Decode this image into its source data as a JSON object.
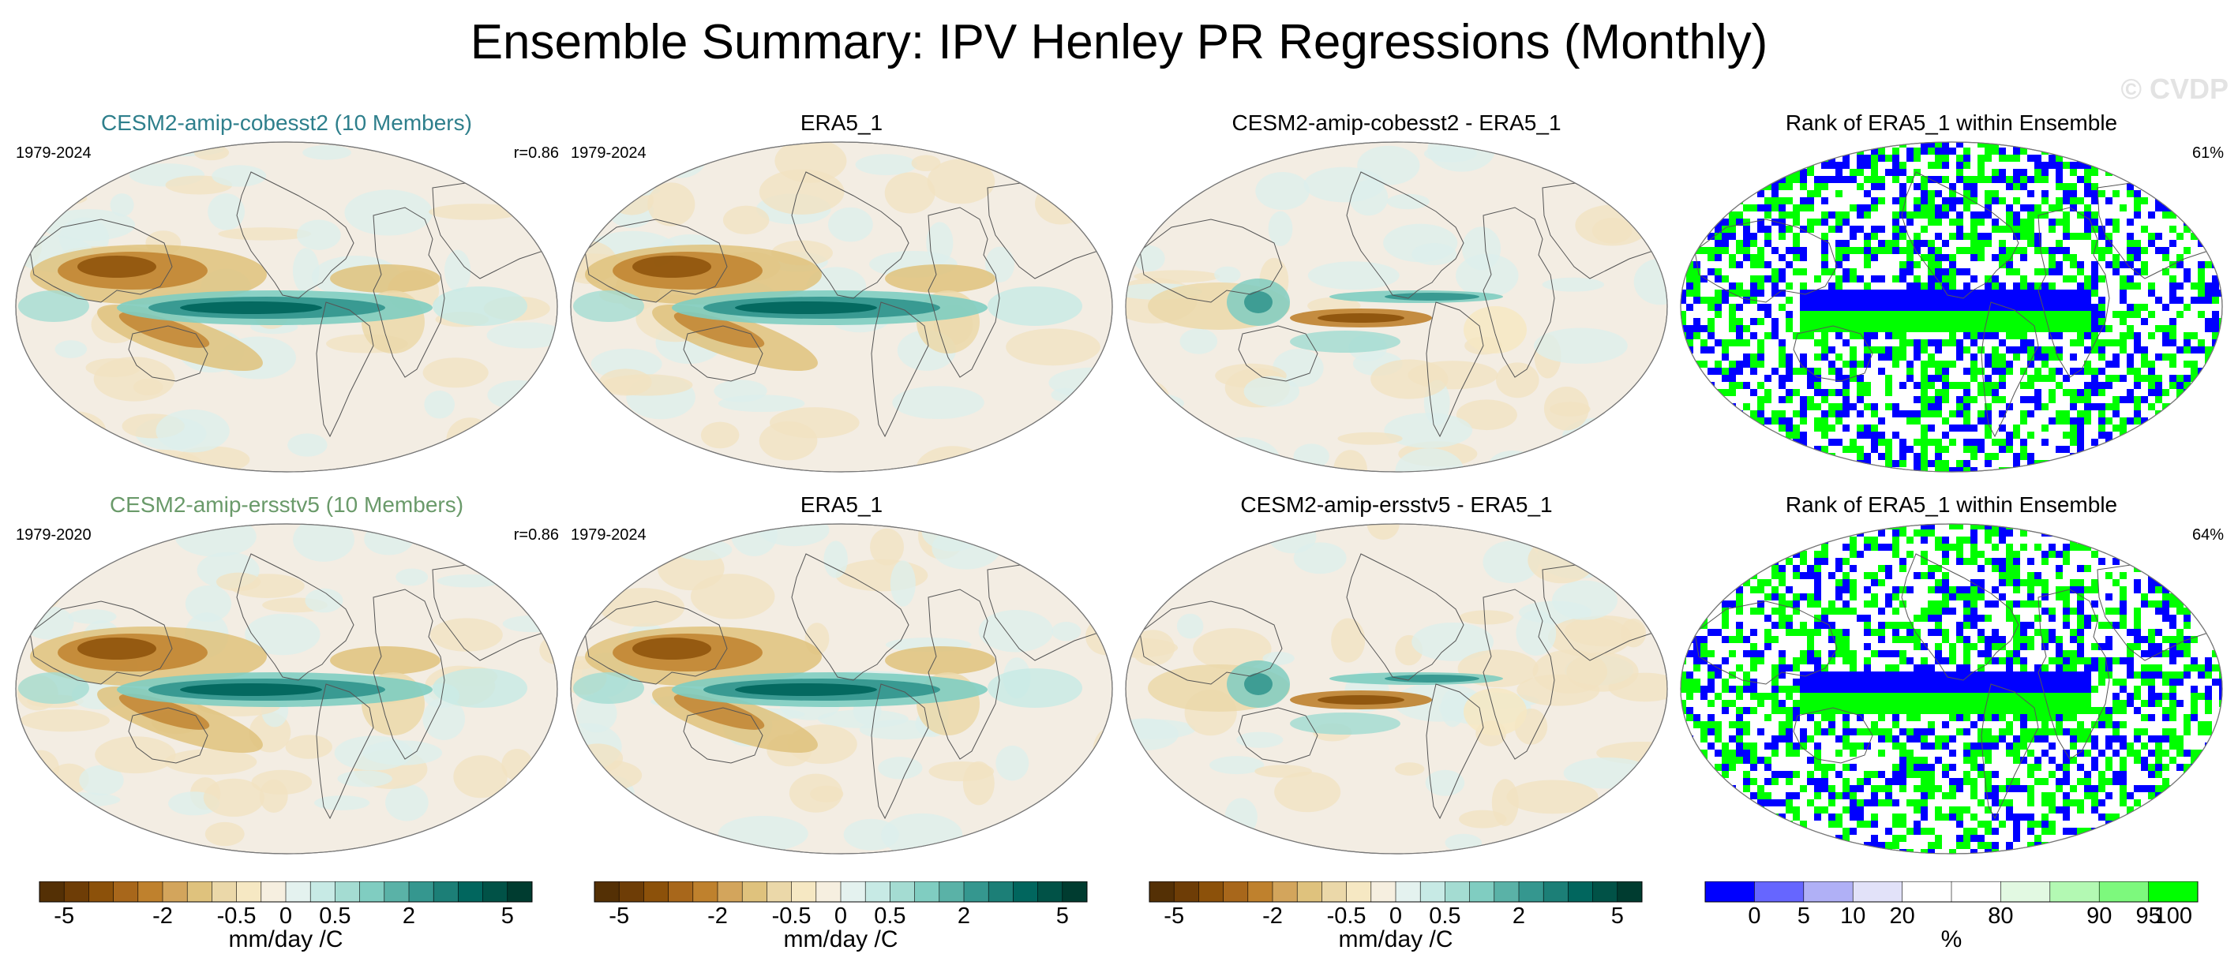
{
  "title": "Ensemble Summary: IPV Henley PR Regressions (Monthly)",
  "watermark": "© CVDP",
  "rows": [
    {
      "panels": [
        {
          "title": "CESM2-amip-cobesst2 (10 Members)",
          "title_color": "#2e7f8c",
          "period": "1979-2024",
          "stat": "r=0.86",
          "kind": "regression"
        },
        {
          "title": "ERA5_1",
          "title_color": "#000000",
          "period": "1979-2024",
          "stat": "",
          "kind": "regression"
        },
        {
          "title": "CESM2-amip-cobesst2 - ERA5_1",
          "title_color": "#000000",
          "period": "",
          "stat": "",
          "kind": "difference"
        },
        {
          "title": "Rank of ERA5_1 within Ensemble",
          "title_color": "#000000",
          "period": "",
          "stat": "61%",
          "kind": "rank"
        }
      ]
    },
    {
      "panels": [
        {
          "title": "CESM2-amip-ersstv5 (10 Members)",
          "title_color": "#6a9a6a",
          "period": "1979-2020",
          "stat": "r=0.86",
          "kind": "regression"
        },
        {
          "title": "ERA5_1",
          "title_color": "#000000",
          "period": "1979-2024",
          "stat": "",
          "kind": "regression"
        },
        {
          "title": "CESM2-amip-ersstv5 - ERA5_1",
          "title_color": "#000000",
          "period": "",
          "stat": "",
          "kind": "difference"
        },
        {
          "title": "Rank of ERA5_1 within Ensemble",
          "title_color": "#000000",
          "period": "",
          "stat": "64%",
          "kind": "rank"
        }
      ]
    }
  ],
  "colorbars": [
    {
      "label": "mm/day /C",
      "kind": "brbg",
      "colors": [
        "#543005",
        "#6e3d06",
        "#8c510a",
        "#a8671b",
        "#bf812d",
        "#d3a55c",
        "#dfc27d",
        "#ebd8a9",
        "#f6e8c3",
        "#f6efe0",
        "#e4f2ef",
        "#c7eae5",
        "#a4dcd2",
        "#80cdc1",
        "#5ab2a7",
        "#35978f",
        "#1c7f77",
        "#01665e",
        "#015247",
        "#003c30"
      ],
      "ticks": [
        "-5",
        "-2",
        "-0.5",
        "0",
        "0.5",
        "2",
        "5"
      ]
    },
    {
      "label": "mm/day /C",
      "kind": "brbg",
      "colors": [
        "#543005",
        "#6e3d06",
        "#8c510a",
        "#a8671b",
        "#bf812d",
        "#d3a55c",
        "#dfc27d",
        "#ebd8a9",
        "#f6e8c3",
        "#f6efe0",
        "#e4f2ef",
        "#c7eae5",
        "#a4dcd2",
        "#80cdc1",
        "#5ab2a7",
        "#35978f",
        "#1c7f77",
        "#01665e",
        "#015247",
        "#003c30"
      ],
      "ticks": [
        "-5",
        "-2",
        "-0.5",
        "0",
        "0.5",
        "2",
        "5"
      ]
    },
    {
      "label": "mm/day /C",
      "kind": "brbg",
      "colors": [
        "#543005",
        "#6e3d06",
        "#8c510a",
        "#a8671b",
        "#bf812d",
        "#d3a55c",
        "#dfc27d",
        "#ebd8a9",
        "#f6e8c3",
        "#f6efe0",
        "#e4f2ef",
        "#c7eae5",
        "#a4dcd2",
        "#80cdc1",
        "#5ab2a7",
        "#35978f",
        "#1c7f77",
        "#01665e",
        "#015247",
        "#003c30"
      ],
      "ticks": [
        "-5",
        "-2",
        "-0.5",
        "0",
        "0.5",
        "2",
        "5"
      ]
    },
    {
      "label": "%",
      "kind": "rank",
      "colors": [
        "#0000ff",
        "#6666ff",
        "#b0b0f6",
        "#e2e2f9",
        "#ffffff",
        "#ffffff",
        "#e2f9e2",
        "#b3f9b3",
        "#7df97d",
        "#00ff00"
      ],
      "ticks": [
        "0",
        "5",
        "10",
        "20",
        "80",
        "90",
        "95",
        "100"
      ]
    }
  ]
}
